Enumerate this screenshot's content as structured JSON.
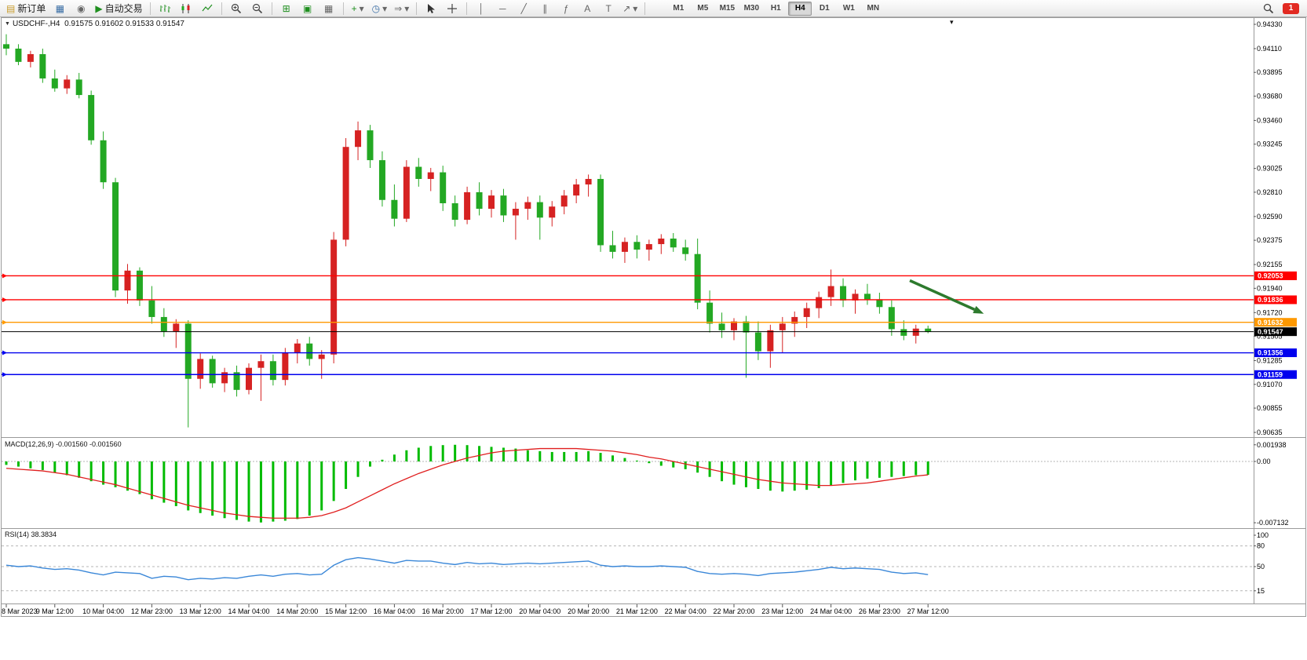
{
  "toolbar": {
    "new_order": "新订单",
    "auto_trading": "自动交易",
    "timeframes": [
      "M1",
      "M5",
      "M15",
      "M30",
      "H1",
      "H4",
      "D1",
      "W1",
      "MN"
    ],
    "active_timeframe": "H4",
    "notification_count": "1"
  },
  "icons": {
    "new_order": "▤",
    "charts_grid": "▦",
    "profiles": "◉",
    "play": "▶",
    "tile_windows": "⊞",
    "cascade": "▣",
    "grid": "▦",
    "indicators_plus": "+",
    "dropdown": "▾",
    "clock": "◷",
    "chart_shift": "⇒",
    "vertical_line": "│",
    "horizontal_line": "─",
    "trendline": "╱",
    "channel": "∥",
    "fibonacci": "ƒ",
    "text_tool": "A",
    "label_tool": "T",
    "arrows_tool": "↗",
    "collapse_arrow": "▼",
    "menu_arrow": "▾"
  },
  "chart": {
    "symbol": "USDCHF-,H4",
    "ohlc": "0.91575 0.91602 0.91533 0.91547"
  },
  "macd_panel": {
    "label": "MACD(12,26,9) -0.001560 -0.001560"
  },
  "rsi_panel": {
    "label": "RSI(14) 38.3834"
  },
  "colors": {
    "bull": "#d62222",
    "bear": "#23a823",
    "macd": "#00bb00",
    "signal": "#e01f1f",
    "rsi": "#3a87d8",
    "axis_text": "#000000",
    "frame": "#9a9a9a"
  },
  "chart_data": {
    "type": "candlestick",
    "symbol": "USDCHF-",
    "timeframe": "H4",
    "ohlc_display": {
      "open": "0.91575",
      "high": "0.91602",
      "low": "0.91533",
      "close": "0.91547"
    },
    "price_axis_ticks": [
      0.9433,
      0.9411,
      0.93895,
      0.9368,
      0.9346,
      0.93245,
      0.93025,
      0.9281,
      0.9259,
      0.92375,
      0.92155,
      0.9194,
      0.9172,
      0.91505,
      0.91285,
      0.9107,
      0.90855,
      0.90635
    ],
    "horizontal_lines": [
      {
        "price": 0.92053,
        "label": "0.92053",
        "color": "#ff0000",
        "type": "resistance"
      },
      {
        "price": 0.91836,
        "label": "0.91836",
        "color": "#ff0000",
        "type": "resistance"
      },
      {
        "price": 0.91632,
        "label": "0.91632",
        "color": "#ff9900",
        "type": "pivot"
      },
      {
        "price": 0.91547,
        "label": "0.91547",
        "color": "#000000",
        "type": "current-price"
      },
      {
        "price": 0.91356,
        "label": "0.91356",
        "color": "#0000ee",
        "type": "support"
      },
      {
        "price": 0.91159,
        "label": "0.91159",
        "color": "#0000ee",
        "type": "support"
      }
    ],
    "annotation_arrow": {
      "from_candle": 74.5,
      "from_price": 0.9201,
      "to_candle": 80.6,
      "to_price": 0.9171,
      "color": "#2d7a2d"
    },
    "time_labels": [
      "8 Mar 2023",
      "9 Mar 12:00",
      "10 Mar 04:00",
      "12 Mar 23:00",
      "13 Mar 12:00",
      "14 Mar 04:00",
      "14 Mar 20:00",
      "15 Mar 12:00",
      "16 Mar 04:00",
      "16 Mar 20:00",
      "17 Mar 12:00",
      "20 Mar 04:00",
      "20 Mar 20:00",
      "21 Mar 12:00",
      "22 Mar 04:00",
      "22 Mar 20:00",
      "23 Mar 12:00",
      "24 Mar 04:00",
      "26 Mar 23:00",
      "27 Mar 12:00"
    ],
    "label_every": 4,
    "candles": [
      [
        0.9415,
        0.9424,
        0.9405,
        0.9411
      ],
      [
        0.9411,
        0.9415,
        0.9396,
        0.9399
      ],
      [
        0.9399,
        0.9409,
        0.9394,
        0.9406
      ],
      [
        0.9406,
        0.9411,
        0.938,
        0.9384
      ],
      [
        0.9384,
        0.9392,
        0.9372,
        0.9375
      ],
      [
        0.9375,
        0.9387,
        0.937,
        0.9383
      ],
      [
        0.9383,
        0.9389,
        0.9366,
        0.9369
      ],
      [
        0.9369,
        0.9373,
        0.9324,
        0.9328
      ],
      [
        0.9328,
        0.9336,
        0.9284,
        0.929
      ],
      [
        0.929,
        0.9294,
        0.9186,
        0.9192
      ],
      [
        0.9192,
        0.9216,
        0.918,
        0.921
      ],
      [
        0.921,
        0.9213,
        0.9178,
        0.9183
      ],
      [
        0.9183,
        0.9196,
        0.9162,
        0.9168
      ],
      [
        0.9168,
        0.9176,
        0.915,
        0.9155
      ],
      [
        0.9155,
        0.9166,
        0.914,
        0.9162
      ],
      [
        0.9162,
        0.9165,
        0.9068,
        0.9112
      ],
      [
        0.9112,
        0.9135,
        0.9103,
        0.913
      ],
      [
        0.913,
        0.9133,
        0.9104,
        0.9108
      ],
      [
        0.9108,
        0.9122,
        0.91,
        0.9118
      ],
      [
        0.9118,
        0.9124,
        0.9096,
        0.9102
      ],
      [
        0.9102,
        0.9126,
        0.9098,
        0.9122
      ],
      [
        0.9122,
        0.9134,
        0.9092,
        0.9128
      ],
      [
        0.9128,
        0.9134,
        0.9106,
        0.9111
      ],
      [
        0.9111,
        0.914,
        0.9106,
        0.9136
      ],
      [
        0.9136,
        0.9148,
        0.9126,
        0.9144
      ],
      [
        0.9144,
        0.915,
        0.9124,
        0.913
      ],
      [
        0.913,
        0.9138,
        0.9112,
        0.9134
      ],
      [
        0.9134,
        0.9245,
        0.9126,
        0.9238
      ],
      [
        0.9238,
        0.933,
        0.9232,
        0.9322
      ],
      [
        0.9322,
        0.9345,
        0.931,
        0.9337
      ],
      [
        0.9337,
        0.9342,
        0.9303,
        0.931
      ],
      [
        0.931,
        0.9318,
        0.9268,
        0.9274
      ],
      [
        0.9274,
        0.9288,
        0.925,
        0.9257
      ],
      [
        0.9257,
        0.931,
        0.9254,
        0.9304
      ],
      [
        0.9304,
        0.9312,
        0.9286,
        0.9293
      ],
      [
        0.9293,
        0.9303,
        0.9282,
        0.9299
      ],
      [
        0.9299,
        0.9305,
        0.9264,
        0.9271
      ],
      [
        0.9271,
        0.9278,
        0.925,
        0.9256
      ],
      [
        0.9256,
        0.9286,
        0.9252,
        0.9281
      ],
      [
        0.9281,
        0.929,
        0.926,
        0.9266
      ],
      [
        0.9266,
        0.9283,
        0.9258,
        0.9278
      ],
      [
        0.9278,
        0.9284,
        0.9254,
        0.926
      ],
      [
        0.926,
        0.9272,
        0.9238,
        0.9266
      ],
      [
        0.9266,
        0.9277,
        0.9256,
        0.9272
      ],
      [
        0.9272,
        0.9278,
        0.9238,
        0.9258
      ],
      [
        0.9258,
        0.9273,
        0.925,
        0.9268
      ],
      [
        0.9268,
        0.9283,
        0.9261,
        0.9278
      ],
      [
        0.9278,
        0.9293,
        0.9271,
        0.9288
      ],
      [
        0.9288,
        0.9297,
        0.9277,
        0.9293
      ],
      [
        0.9293,
        0.9297,
        0.9227,
        0.9233
      ],
      [
        0.9233,
        0.9246,
        0.9221,
        0.9227
      ],
      [
        0.9227,
        0.924,
        0.9217,
        0.9236
      ],
      [
        0.9236,
        0.9242,
        0.9221,
        0.9229
      ],
      [
        0.9229,
        0.9238,
        0.9219,
        0.9234
      ],
      [
        0.9234,
        0.9243,
        0.9225,
        0.9239
      ],
      [
        0.9239,
        0.9244,
        0.9227,
        0.9231
      ],
      [
        0.9231,
        0.9238,
        0.9219,
        0.9225
      ],
      [
        0.9225,
        0.9239,
        0.9175,
        0.9181
      ],
      [
        0.9181,
        0.9192,
        0.9154,
        0.9162
      ],
      [
        0.9162,
        0.9172,
        0.9149,
        0.9156
      ],
      [
        0.9156,
        0.9167,
        0.9147,
        0.9164
      ],
      [
        0.9164,
        0.9169,
        0.9113,
        0.9154
      ],
      [
        0.9154,
        0.9164,
        0.9129,
        0.9137
      ],
      [
        0.9137,
        0.9161,
        0.9122,
        0.9156
      ],
      [
        0.9156,
        0.9168,
        0.9136,
        0.9162
      ],
      [
        0.9162,
        0.9173,
        0.915,
        0.9168
      ],
      [
        0.9168,
        0.9181,
        0.9158,
        0.9176
      ],
      [
        0.9176,
        0.9191,
        0.9167,
        0.9186
      ],
      [
        0.9186,
        0.9211,
        0.9178,
        0.9196
      ],
      [
        0.9196,
        0.9203,
        0.9177,
        0.9183
      ],
      [
        0.9183,
        0.9193,
        0.9171,
        0.9189
      ],
      [
        0.9189,
        0.9198,
        0.9179,
        0.9184
      ],
      [
        0.9184,
        0.919,
        0.9171,
        0.9177
      ],
      [
        0.9177,
        0.9183,
        0.9151,
        0.9157
      ],
      [
        0.9157,
        0.9165,
        0.9147,
        0.9151
      ],
      [
        0.9151,
        0.9161,
        0.9144,
        0.91575
      ],
      [
        0.91575,
        0.91602,
        0.91533,
        0.91547
      ]
    ],
    "macd": {
      "name": "MACD(12,26,9)",
      "display": "-0.001560 -0.001560",
      "axis_ticks": [
        {
          "v": 0.001938,
          "label": "0.001938"
        },
        {
          "v": 0,
          "label": "0.00"
        },
        {
          "v": -0.007132,
          "label": "-0.007132"
        }
      ],
      "values": [
        -0.0004,
        -0.0006,
        -0.0008,
        -0.001,
        -0.0013,
        -0.0016,
        -0.0019,
        -0.0023,
        -0.0027,
        -0.003,
        -0.0034,
        -0.0038,
        -0.0044,
        -0.0048,
        -0.0052,
        -0.0057,
        -0.006,
        -0.0063,
        -0.0066,
        -0.0068,
        -0.007,
        -0.0071,
        -0.007,
        -0.0069,
        -0.0067,
        -0.0063,
        -0.0057,
        -0.0046,
        -0.0032,
        -0.0018,
        -0.0006,
        0.0002,
        0.0008,
        0.0013,
        0.0016,
        0.0018,
        0.0019,
        0.00194,
        0.0019,
        0.0018,
        0.0017,
        0.0016,
        0.0015,
        0.0013,
        0.0012,
        0.0011,
        0.0011,
        0.0011,
        0.0012,
        0.001,
        0.0007,
        0.0004,
        0.0001,
        -0.0002,
        -0.0005,
        -0.0007,
        -0.0009,
        -0.0013,
        -0.0018,
        -0.0023,
        -0.0027,
        -0.003,
        -0.0032,
        -0.0034,
        -0.0035,
        -0.0034,
        -0.0033,
        -0.0031,
        -0.0028,
        -0.0025,
        -0.0022,
        -0.002,
        -0.0019,
        -0.0018,
        -0.0017,
        -0.0016,
        -0.00156
      ],
      "signal": [
        -0.0008,
        -0.0009,
        -0.001,
        -0.0011,
        -0.0013,
        -0.0015,
        -0.0018,
        -0.0021,
        -0.0024,
        -0.0027,
        -0.0031,
        -0.0035,
        -0.0039,
        -0.0043,
        -0.0047,
        -0.0051,
        -0.0054,
        -0.0057,
        -0.006,
        -0.0062,
        -0.0064,
        -0.0065,
        -0.0066,
        -0.0066,
        -0.0066,
        -0.0065,
        -0.0063,
        -0.0059,
        -0.0054,
        -0.0047,
        -0.004,
        -0.0033,
        -0.0026,
        -0.002,
        -0.0014,
        -0.0009,
        -0.0004,
        0.0,
        0.0004,
        0.0007,
        0.001,
        0.0012,
        0.0013,
        0.0014,
        0.0015,
        0.0015,
        0.0015,
        0.0015,
        0.0014,
        0.0013,
        0.0012,
        0.001,
        0.0008,
        0.0005,
        0.0003,
        0.0,
        -0.0003,
        -0.0006,
        -0.0009,
        -0.0012,
        -0.0015,
        -0.0018,
        -0.0021,
        -0.0023,
        -0.0025,
        -0.0026,
        -0.0027,
        -0.0028,
        -0.0028,
        -0.0027,
        -0.0026,
        -0.0025,
        -0.0023,
        -0.0021,
        -0.0019,
        -0.0017,
        -0.00156
      ]
    },
    "rsi": {
      "name": "RSI(14)",
      "display": "38.3834",
      "axis_ticks": [
        100,
        80,
        50,
        15
      ],
      "levels": [
        80,
        50,
        15
      ],
      "values": [
        52,
        50,
        51,
        48,
        46,
        47,
        45,
        41,
        38,
        42,
        41,
        40,
        33,
        36,
        35,
        31,
        33,
        32,
        34,
        33,
        36,
        38,
        36,
        39,
        40,
        38,
        39,
        52,
        60,
        63,
        61,
        58,
        55,
        59,
        58,
        58,
        55,
        53,
        56,
        54,
        55,
        53,
        54,
        55,
        54,
        55,
        56,
        57,
        58,
        52,
        50,
        51,
        50,
        50,
        51,
        50,
        49,
        43,
        40,
        39,
        40,
        39,
        37,
        40,
        41,
        42,
        44,
        46,
        49,
        47,
        48,
        47,
        46,
        42,
        40,
        41,
        38.4
      ]
    }
  }
}
